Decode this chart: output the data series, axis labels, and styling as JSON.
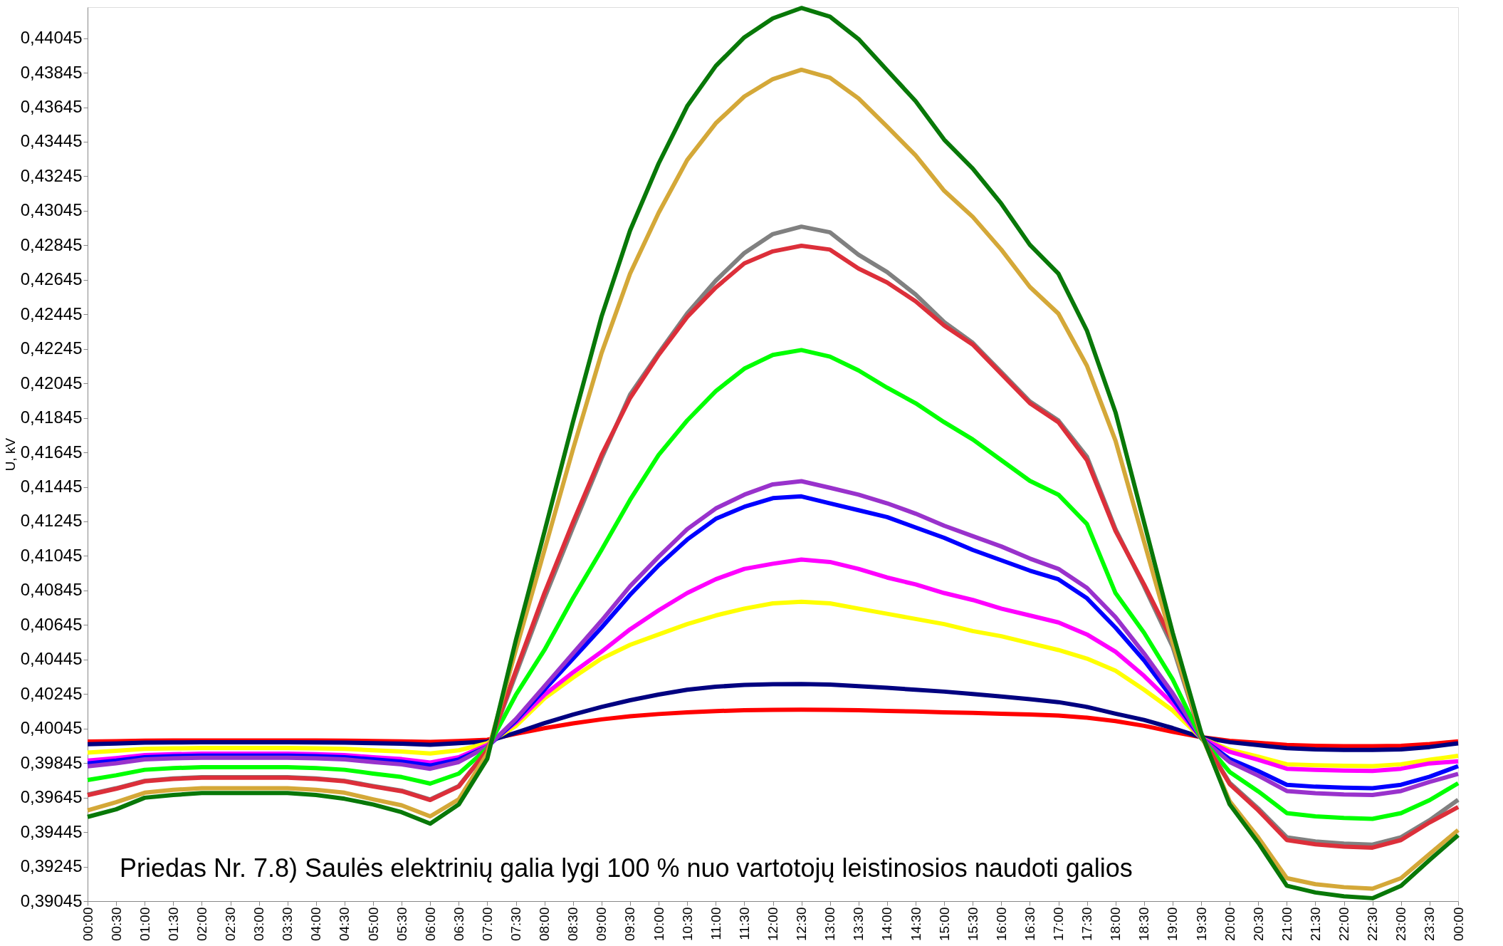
{
  "chart_data": {
    "type": "line",
    "ylabel": "U, kV",
    "line_style": "solid",
    "annotations": [
      "Priedas Nr. 7.8) Saulės elektrinių galia lygi 100 % nuo vartotojų leistinosios naudoti galios"
    ],
    "categories": [
      "00:00",
      "00:30",
      "01:00",
      "01:30",
      "02:00",
      "02:30",
      "03:00",
      "03:30",
      "04:00",
      "04:30",
      "05:00",
      "05:30",
      "06:00",
      "06:30",
      "07:00",
      "07:30",
      "08:00",
      "08:30",
      "09:00",
      "09:30",
      "10:00",
      "10:30",
      "11:00",
      "11:30",
      "12:00",
      "12:30",
      "13:00",
      "13:30",
      "14:00",
      "14:30",
      "15:00",
      "15:30",
      "16:00",
      "16:30",
      "17:00",
      "17:30",
      "18:00",
      "18:30",
      "19:00",
      "19:30",
      "20:00",
      "20:30",
      "21:00",
      "21:30",
      "22:00",
      "22:30",
      "23:00",
      "23:30",
      "00:00"
    ],
    "ylim": [
      0.39045,
      0.44225
    ],
    "yticks": [
      {
        "value": 0.39045,
        "label": "0,39045"
      },
      {
        "value": 0.39245,
        "label": "0,39245"
      },
      {
        "value": 0.39445,
        "label": "0,39445"
      },
      {
        "value": 0.39645,
        "label": "0,39645"
      },
      {
        "value": 0.39845,
        "label": "0,39845"
      },
      {
        "value": 0.40045,
        "label": "0,40045"
      },
      {
        "value": 0.40245,
        "label": "0,40245"
      },
      {
        "value": 0.40445,
        "label": "0,40445"
      },
      {
        "value": 0.40645,
        "label": "0,40645"
      },
      {
        "value": 0.40845,
        "label": "0,40845"
      },
      {
        "value": 0.41045,
        "label": "0,41045"
      },
      {
        "value": 0.41245,
        "label": "0,41245"
      },
      {
        "value": 0.41445,
        "label": "0,41445"
      },
      {
        "value": 0.41645,
        "label": "0,41645"
      },
      {
        "value": 0.41845,
        "label": "0,41845"
      },
      {
        "value": 0.42045,
        "label": "0,42045"
      },
      {
        "value": 0.42245,
        "label": "0,42245"
      },
      {
        "value": 0.42445,
        "label": "0,42445"
      },
      {
        "value": 0.42645,
        "label": "0,42645"
      },
      {
        "value": 0.42845,
        "label": "0,42845"
      },
      {
        "value": 0.43045,
        "label": "0,43045"
      },
      {
        "value": 0.43245,
        "label": "0,43245"
      },
      {
        "value": 0.43445,
        "label": "0,43445"
      },
      {
        "value": 0.43645,
        "label": "0,43645"
      },
      {
        "value": 0.43845,
        "label": "0,43845"
      },
      {
        "value": 0.44045,
        "label": "0,44045"
      }
    ],
    "series": [
      {
        "color": "#ff0000",
        "values": [
          0.3997,
          0.39972,
          0.39975,
          0.39976,
          0.39976,
          0.39976,
          0.39976,
          0.39976,
          0.39976,
          0.39975,
          0.39973,
          0.39971,
          0.39968,
          0.39973,
          0.3998,
          0.40015,
          0.40047,
          0.40075,
          0.40098,
          0.40116,
          0.40129,
          0.40139,
          0.40146,
          0.40151,
          0.40153,
          0.40154,
          0.40153,
          0.40151,
          0.40147,
          0.40144,
          0.40139,
          0.40136,
          0.40131,
          0.40126,
          0.4012,
          0.40108,
          0.40088,
          0.40061,
          0.40026,
          0.39995,
          0.39974,
          0.39962,
          0.3995,
          0.39945,
          0.39943,
          0.39943,
          0.39945,
          0.39955,
          0.39971
        ]
      },
      {
        "color": "#000080",
        "values": [
          0.39954,
          0.39958,
          0.39963,
          0.39964,
          0.39965,
          0.39965,
          0.39965,
          0.39965,
          0.39964,
          0.39963,
          0.3996,
          0.39957,
          0.39951,
          0.3996,
          0.3997,
          0.40021,
          0.40076,
          0.40126,
          0.4017,
          0.40209,
          0.40242,
          0.4027,
          0.40287,
          0.40298,
          0.40302,
          0.40303,
          0.403,
          0.4029,
          0.40281,
          0.4027,
          0.40259,
          0.40245,
          0.40231,
          0.40215,
          0.40198,
          0.4017,
          0.40131,
          0.40095,
          0.40048,
          0.39995,
          0.39966,
          0.39949,
          0.39931,
          0.39924,
          0.39921,
          0.39921,
          0.39924,
          0.39938,
          0.39959
        ]
      },
      {
        "color": "#ffff00",
        "values": [
          0.39906,
          0.39916,
          0.39927,
          0.3993,
          0.39932,
          0.39932,
          0.39932,
          0.39932,
          0.3993,
          0.39927,
          0.39919,
          0.39912,
          0.399,
          0.39919,
          0.3996,
          0.4006,
          0.4022,
          0.4034,
          0.4045,
          0.4053,
          0.4059,
          0.4065,
          0.407,
          0.4074,
          0.4077,
          0.4078,
          0.4077,
          0.4074,
          0.4071,
          0.4068,
          0.4065,
          0.4061,
          0.4058,
          0.4054,
          0.405,
          0.4045,
          0.4038,
          0.4027,
          0.4015,
          0.3999,
          0.39922,
          0.39882,
          0.39838,
          0.39832,
          0.39829,
          0.39827,
          0.39838,
          0.39864,
          0.39887
        ]
      },
      {
        "color": "#ff00ff",
        "values": [
          0.39859,
          0.39874,
          0.39891,
          0.39896,
          0.39899,
          0.39899,
          0.39899,
          0.39899,
          0.39896,
          0.39891,
          0.39879,
          0.39868,
          0.39848,
          0.39879,
          0.3995,
          0.4008,
          0.4024,
          0.4037,
          0.4049,
          0.4062,
          0.4073,
          0.4083,
          0.4091,
          0.4097,
          0.41,
          0.41024,
          0.4101,
          0.4097,
          0.4092,
          0.4088,
          0.4083,
          0.4079,
          0.4074,
          0.407,
          0.4066,
          0.4059,
          0.4049,
          0.4035,
          0.4019,
          0.3999,
          0.3991,
          0.39864,
          0.39812,
          0.39805,
          0.39801,
          0.39799,
          0.39812,
          0.39843,
          0.39855
        ]
      },
      {
        "color": "#0000ff",
        "values": [
          0.39843,
          0.39859,
          0.39879,
          0.39885,
          0.39888,
          0.39888,
          0.39888,
          0.39888,
          0.39885,
          0.39879,
          0.39866,
          0.39853,
          0.39831,
          0.39866,
          0.3994,
          0.4009,
          0.4027,
          0.4045,
          0.4063,
          0.4082,
          0.4099,
          0.4114,
          0.4126,
          0.4133,
          0.4138,
          0.4139,
          0.4135,
          0.4131,
          0.4127,
          0.4121,
          0.4115,
          0.4108,
          0.4102,
          0.4096,
          0.4091,
          0.408,
          0.4063,
          0.4044,
          0.4022,
          0.3999,
          0.39868,
          0.39798,
          0.39719,
          0.39708,
          0.39702,
          0.39699,
          0.39719,
          0.39766,
          0.39827
        ]
      },
      {
        "color": "#9932cc",
        "values": [
          0.39826,
          0.39844,
          0.39866,
          0.39873,
          0.39876,
          0.39876,
          0.39876,
          0.39876,
          0.39873,
          0.39866,
          0.39851,
          0.39837,
          0.39812,
          0.39851,
          0.3994,
          0.401,
          0.4029,
          0.4048,
          0.4067,
          0.4087,
          0.4104,
          0.412,
          0.4132,
          0.414,
          0.4146,
          0.41478,
          0.4144,
          0.414,
          0.4135,
          0.4129,
          0.4122,
          0.4116,
          0.411,
          0.4103,
          0.4097,
          0.4086,
          0.4069,
          0.4048,
          0.4025,
          0.3999,
          0.39851,
          0.39772,
          0.39683,
          0.3967,
          0.39663,
          0.3966,
          0.39683,
          0.39736,
          0.39782
        ]
      },
      {
        "color": "#00ff00",
        "values": [
          0.39747,
          0.39774,
          0.39806,
          0.39816,
          0.39821,
          0.39821,
          0.39821,
          0.39821,
          0.39816,
          0.39806,
          0.39784,
          0.39764,
          0.39726,
          0.39784,
          0.3993,
          0.4024,
          0.405,
          0.408,
          0.4108,
          0.4137,
          0.4163,
          0.4183,
          0.42,
          0.4213,
          0.4221,
          0.42238,
          0.422,
          0.4212,
          0.4202,
          0.4193,
          0.4182,
          0.4172,
          0.416,
          0.4148,
          0.414,
          0.4123,
          0.4083,
          0.406,
          0.4033,
          0.3999,
          0.39793,
          0.39681,
          0.39555,
          0.39536,
          0.39527,
          0.39522,
          0.39555,
          0.3963,
          0.39728
        ]
      },
      {
        "color": "#808080",
        "values": [
          0.39662,
          0.39699,
          0.39742,
          0.39756,
          0.39763,
          0.39763,
          0.39763,
          0.39763,
          0.39756,
          0.39742,
          0.39712,
          0.39685,
          0.39634,
          0.39712,
          0.3992,
          0.4036,
          0.408,
          0.4121,
          0.4161,
          0.4198,
          0.4222,
          0.4245,
          0.4264,
          0.428,
          0.4291,
          0.42953,
          0.4292,
          0.4279,
          0.4269,
          0.4256,
          0.424,
          0.4228,
          0.4211,
          0.4194,
          0.4183,
          0.4162,
          0.412,
          0.4087,
          0.4052,
          0.4,
          0.3973,
          0.39582,
          0.39415,
          0.39391,
          0.39378,
          0.39372,
          0.39415,
          0.39514,
          0.39632
        ]
      },
      {
        "color": "#dc2f3a",
        "values": [
          0.39659,
          0.39696,
          0.39739,
          0.39753,
          0.3976,
          0.3976,
          0.3976,
          0.3976,
          0.39753,
          0.39739,
          0.39709,
          0.39682,
          0.39631,
          0.39709,
          0.3992,
          0.4038,
          0.4083,
          0.4124,
          0.4163,
          0.4196,
          0.4221,
          0.4243,
          0.426,
          0.4274,
          0.4281,
          0.42842,
          0.4282,
          0.4271,
          0.4263,
          0.4252,
          0.4238,
          0.4227,
          0.421,
          0.4193,
          0.4182,
          0.416,
          0.4119,
          0.4088,
          0.4055,
          0.4,
          0.39723,
          0.39571,
          0.39399,
          0.39374,
          0.39361,
          0.39355,
          0.39399,
          0.39501,
          0.3959
        ]
      },
      {
        "color": "#d4a838",
        "values": [
          0.39571,
          0.39618,
          0.39673,
          0.3969,
          0.39699,
          0.39699,
          0.39699,
          0.39699,
          0.3969,
          0.39673,
          0.39635,
          0.396,
          0.39536,
          0.39635,
          0.399,
          0.40501,
          0.41078,
          0.41663,
          0.4222,
          0.42681,
          0.43033,
          0.43339,
          0.43552,
          0.43707,
          0.43808,
          0.43862,
          0.43816,
          0.43696,
          0.43533,
          0.43366,
          0.43161,
          0.4301,
          0.4282,
          0.42604,
          0.42449,
          0.42147,
          0.41713,
          0.41128,
          0.40544,
          0.4001,
          0.39623,
          0.39414,
          0.39178,
          0.39143,
          0.39126,
          0.39117,
          0.39178,
          0.39318,
          0.39457
        ]
      },
      {
        "color": "#087808",
        "values": [
          0.39533,
          0.39577,
          0.39644,
          0.3966,
          0.39671,
          0.39671,
          0.39671,
          0.39671,
          0.3966,
          0.39638,
          0.39605,
          0.3956,
          0.39494,
          0.39605,
          0.3987,
          0.40558,
          0.41185,
          0.41822,
          0.42432,
          0.42931,
          0.43319,
          0.43651,
          0.43884,
          0.4405,
          0.4416,
          0.4422,
          0.4417,
          0.4404,
          0.4386,
          0.4368,
          0.43457,
          0.4329,
          0.43086,
          0.42848,
          0.42681,
          0.4235,
          0.41877,
          0.4124,
          0.40602,
          0.40021,
          0.39605,
          0.39383,
          0.39134,
          0.39095,
          0.39073,
          0.39062,
          0.39134,
          0.39283,
          0.39427
        ]
      }
    ]
  }
}
